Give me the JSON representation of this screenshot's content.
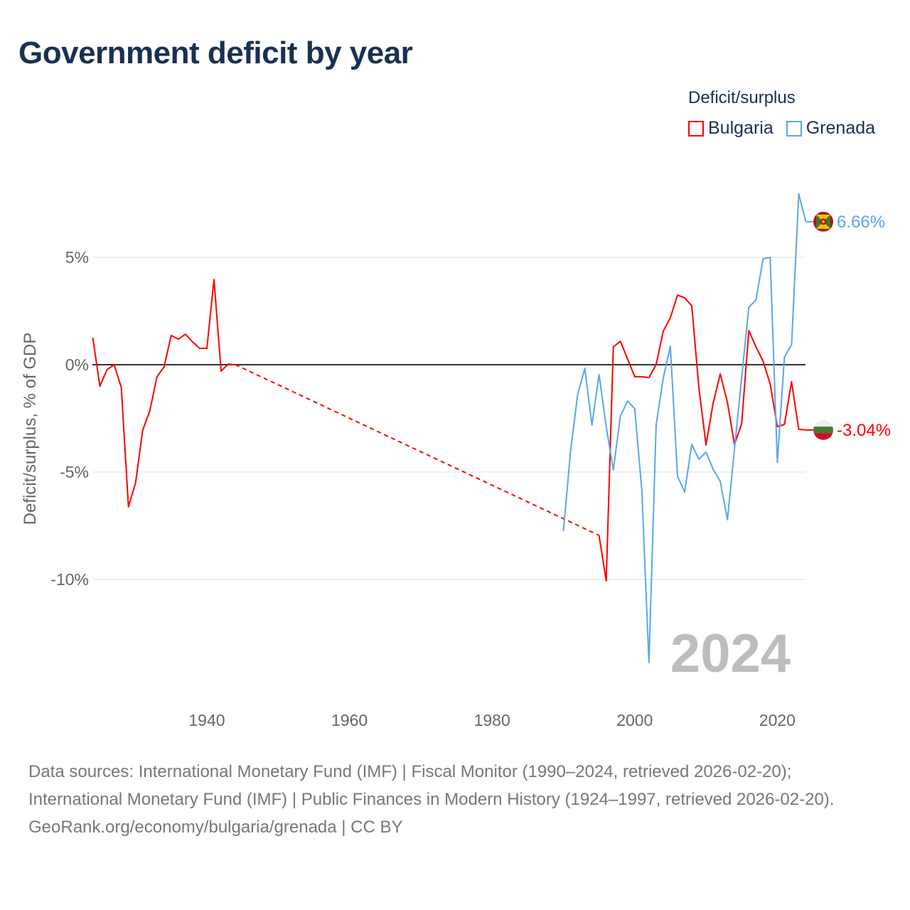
{
  "title": "Government deficit by year",
  "legend": {
    "title": "Deficit/surplus",
    "items": [
      {
        "name": "Bulgaria",
        "color": "#ff0000"
      },
      {
        "name": "Grenada",
        "color": "#5aa5ee"
      }
    ]
  },
  "year_watermark": "2024",
  "footer": {
    "sources": "Data sources: International Monetary Fund (IMF) | Fiscal Monitor (1990–2024, retrieved 2026-02-20); International Monetary Fund (IMF) | Public Finances in Modern History (1924–1997, retrieved 2026-02-20).",
    "credit": "GeoRank.org/economy/bulgaria/grenada | CC BY"
  },
  "chart_data": {
    "type": "line",
    "title": "Government deficit by year",
    "xlabel": "",
    "ylabel": "Deficit/surplus, % of GDP",
    "xlim": [
      1924,
      2024
    ],
    "ylim": [
      -14,
      8
    ],
    "xticks": [
      1940,
      1960,
      1980,
      2000,
      2020
    ],
    "xtick_labels": [
      "1940",
      "1960",
      "1980",
      "2000",
      "2020"
    ],
    "yticks": [
      5,
      0,
      -5,
      -10
    ],
    "ytick_labels": [
      "5%",
      "0%",
      "-5%",
      "-10%"
    ],
    "grid": true,
    "legend_position": "top-right",
    "series": [
      {
        "name": "Bulgaria",
        "color": "#ff0000",
        "end_label": "-3.04%",
        "flag": "bulgaria-flag",
        "segments": [
          {
            "x": [
              1924,
              1925,
              1926,
              1927,
              1928,
              1929,
              1930,
              1931,
              1932,
              1933,
              1934,
              1935,
              1936,
              1937,
              1938,
              1939,
              1940,
              1941,
              1942,
              1943,
              1944
            ],
            "y": [
              1.26,
              -1.0,
              -0.23,
              0.0,
              -1.06,
              -6.62,
              -5.5,
              -3.05,
              -2.15,
              -0.56,
              -0.1,
              1.36,
              1.19,
              1.42,
              1.06,
              0.76,
              0.76,
              3.97,
              -0.3,
              0.03,
              0.0
            ]
          },
          {
            "x": [
              1995,
              1996,
              1997,
              1998,
              1999,
              2000,
              2001,
              2002,
              2003,
              2004,
              2005,
              2006,
              2007,
              2008,
              2009,
              2010,
              2011,
              2012,
              2013,
              2014,
              2015,
              2016,
              2017,
              2018,
              2019,
              2020,
              2021,
              2022,
              2023,
              2024
            ],
            "y": [
              -7.95,
              -10.07,
              0.83,
              1.09,
              0.26,
              -0.56,
              -0.56,
              -0.6,
              0.0,
              1.56,
              2.19,
              3.25,
              3.11,
              2.75,
              -1.06,
              -3.74,
              -1.79,
              -0.43,
              -1.75,
              -3.71,
              -2.75,
              1.59,
              0.83,
              0.17,
              -0.89,
              -2.88,
              -2.78,
              -0.79,
              -3.01,
              -3.04
            ]
          }
        ]
      },
      {
        "name": "Grenada",
        "color": "#5aa5ee",
        "end_label": "6.66%",
        "flag": "grenada-flag",
        "segments": [
          {
            "x": [
              1990,
              1991,
              1992,
              1993,
              1994,
              1995,
              1996,
              1997,
              1998,
              1999,
              2000,
              2001,
              2002,
              2003,
              2004,
              2005,
              2006,
              2007,
              2008,
              2009,
              2010,
              2011,
              2012,
              2013,
              2014,
              2015,
              2016,
              2017,
              2018,
              2019,
              2020,
              2021,
              2022,
              2023,
              2024
            ],
            "y": [
              -7.75,
              -4.04,
              -1.39,
              -0.17,
              -2.81,
              -0.46,
              -2.88,
              -4.9,
              -2.38,
              -1.69,
              -2.05,
              -5.86,
              -13.87,
              -2.81,
              -0.63,
              0.86,
              -5.2,
              -5.93,
              -3.71,
              -4.4,
              -4.07,
              -4.87,
              -5.43,
              -7.22,
              -3.9,
              -0.6,
              2.68,
              3.01,
              4.93,
              5.0,
              -4.54,
              0.36,
              0.93,
              7.95,
              6.66
            ]
          }
        ]
      }
    ]
  }
}
